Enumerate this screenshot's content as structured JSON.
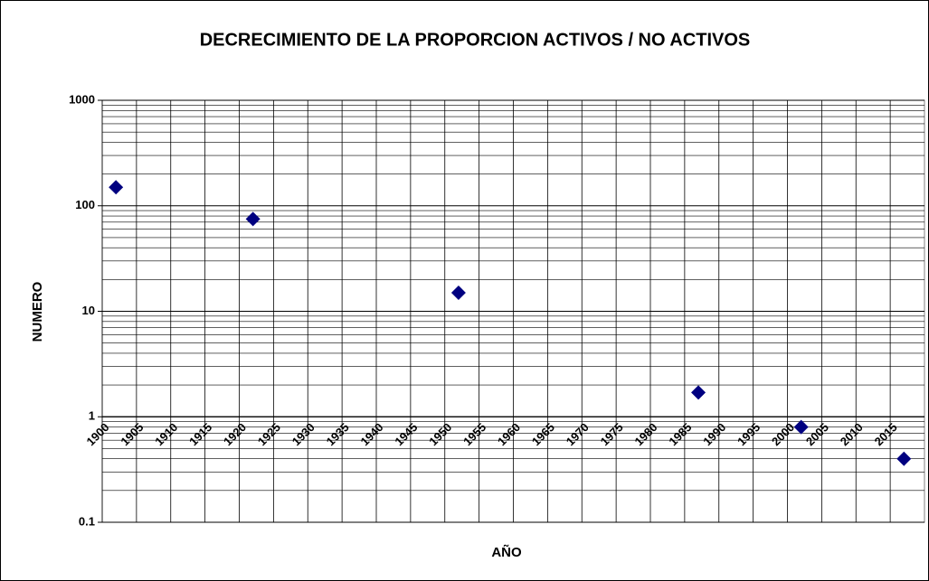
{
  "chart_data": {
    "type": "scatter",
    "title": "DECRECIMIENTO DE LA PROPORCION ACTIVOS / NO ACTIVOS",
    "x_label": "AÑO",
    "y_label": "NUMERO",
    "x": [
      1902,
      1922,
      1952,
      1987,
      2002,
      2017
    ],
    "values": [
      150,
      75,
      15,
      1.7,
      0.8,
      0.4
    ],
    "color": "#000080",
    "xlim": [
      1900,
      2020
    ],
    "xticks": [
      1900,
      1905,
      1910,
      1915,
      1920,
      1925,
      1930,
      1935,
      1940,
      1945,
      1950,
      1955,
      1960,
      1965,
      1970,
      1975,
      1980,
      1985,
      1990,
      1995,
      2000,
      2005,
      2010,
      2015
    ],
    "ylim": [
      0.1,
      1000
    ],
    "yticks": [
      0.1,
      1,
      10,
      100,
      1000
    ],
    "y_log": true,
    "grid": true,
    "minor_grid": true,
    "x_axis_crosses": 1
  }
}
